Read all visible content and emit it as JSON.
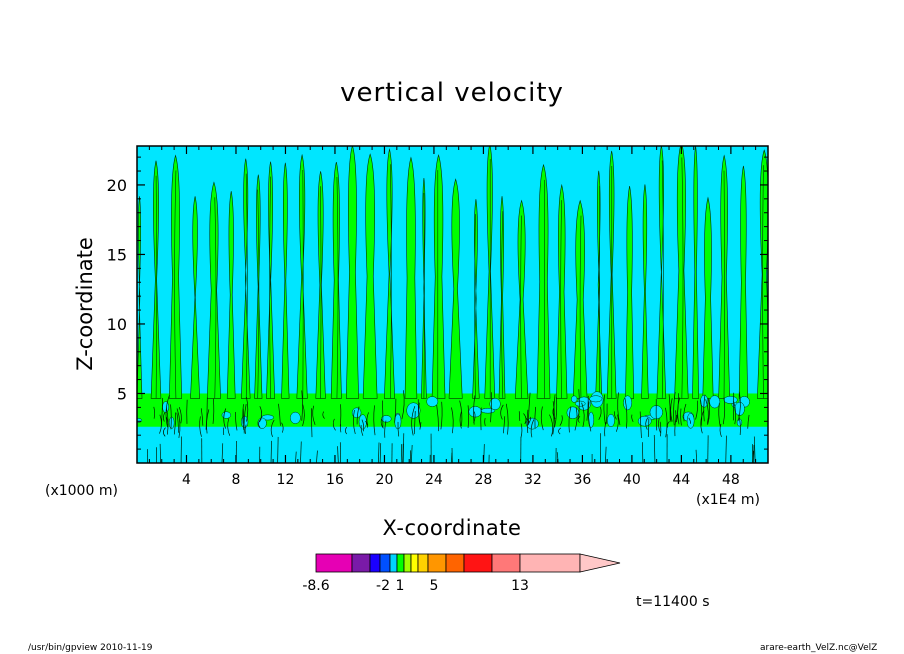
{
  "chart_data": {
    "type": "heatmap",
    "title": "vertical velocity",
    "xlabel": "X-coordinate",
    "ylabel": "Z-coordinate",
    "x_unit_left": "(x1000 m)",
    "x_unit_right": "(x1E4 m)",
    "xlim": [
      0,
      51
    ],
    "ylim": [
      0,
      22.8
    ],
    "x_ticks": [
      4,
      8,
      12,
      16,
      20,
      24,
      28,
      32,
      36,
      40,
      44,
      48
    ],
    "y_ticks": [
      5,
      10,
      15,
      20
    ],
    "dominant_fields": [
      {
        "band": "near surface (z < 2.5)",
        "color": "#00e6ff"
      },
      {
        "band": "lower layer (2.5 < z < 5)",
        "color": "#00ff00"
      },
      {
        "band": "upper layer (z > 5)",
        "color": "alternating #00ff00 / #00e6ff vertical plumes"
      }
    ],
    "colorbar": {
      "colors": [
        "#e600b4",
        "#7a1aa8",
        "#1a00ff",
        "#0050ff",
        "#00d2ff",
        "#00ff00",
        "#a0ff00",
        "#ffff00",
        "#ffd200",
        "#ff9600",
        "#ff6400",
        "#ff1414",
        "#ff7878",
        "#ffb4b4"
      ],
      "labels": [
        "-8.6",
        "-2",
        "1",
        "5",
        "13"
      ]
    },
    "annotation": "t=11400 s"
  },
  "footer": {
    "left": "/usr/bin/gpview  2010-11-19",
    "right": "arare-earth_VelZ.nc@VelZ"
  }
}
